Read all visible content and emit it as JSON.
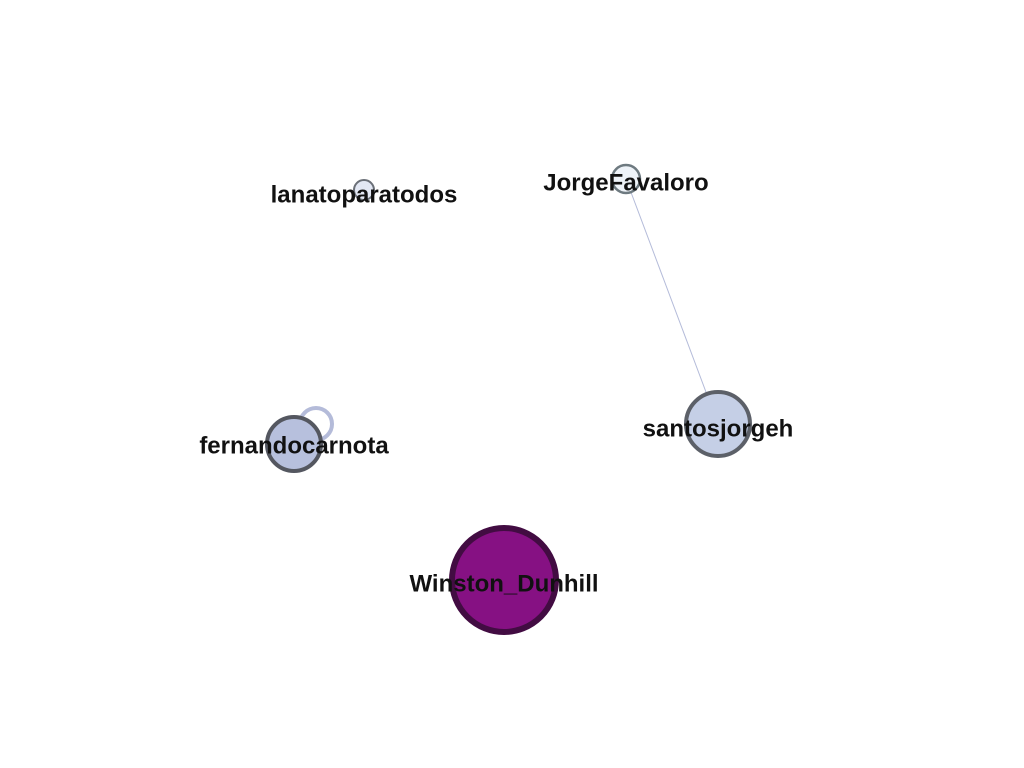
{
  "graph": {
    "colors": {
      "edge": "#b4bbd9",
      "label": "#111111",
      "background": "#ffffff"
    },
    "nodes": [
      {
        "id": "lanatoparatodos",
        "label": "lanatoparatodos",
        "fill": "#e3e8f4",
        "stroke": "#6b7078"
      },
      {
        "id": "JorgeFavaloro",
        "label": "JorgeFavaloro",
        "fill": "#eef3f8",
        "stroke": "#6e7a80"
      },
      {
        "id": "santosjorgeh",
        "label": "santosjorgeh",
        "fill": "#c5cfe6",
        "stroke": "#5c6068"
      },
      {
        "id": "fernandocarnota",
        "label": "fernandocarnota",
        "fill": "#b7c0dd",
        "stroke": "#545760"
      },
      {
        "id": "Winston_Dunhill",
        "label": "Winston_Dunhill",
        "fill": "#861183",
        "stroke": "#420c42"
      }
    ],
    "edges": [
      {
        "source": "JorgeFavaloro",
        "target": "santosjorgeh"
      }
    ],
    "self_loops": [
      {
        "node": "fernandocarnota",
        "stroke": "#b4bbd9"
      }
    ]
  }
}
